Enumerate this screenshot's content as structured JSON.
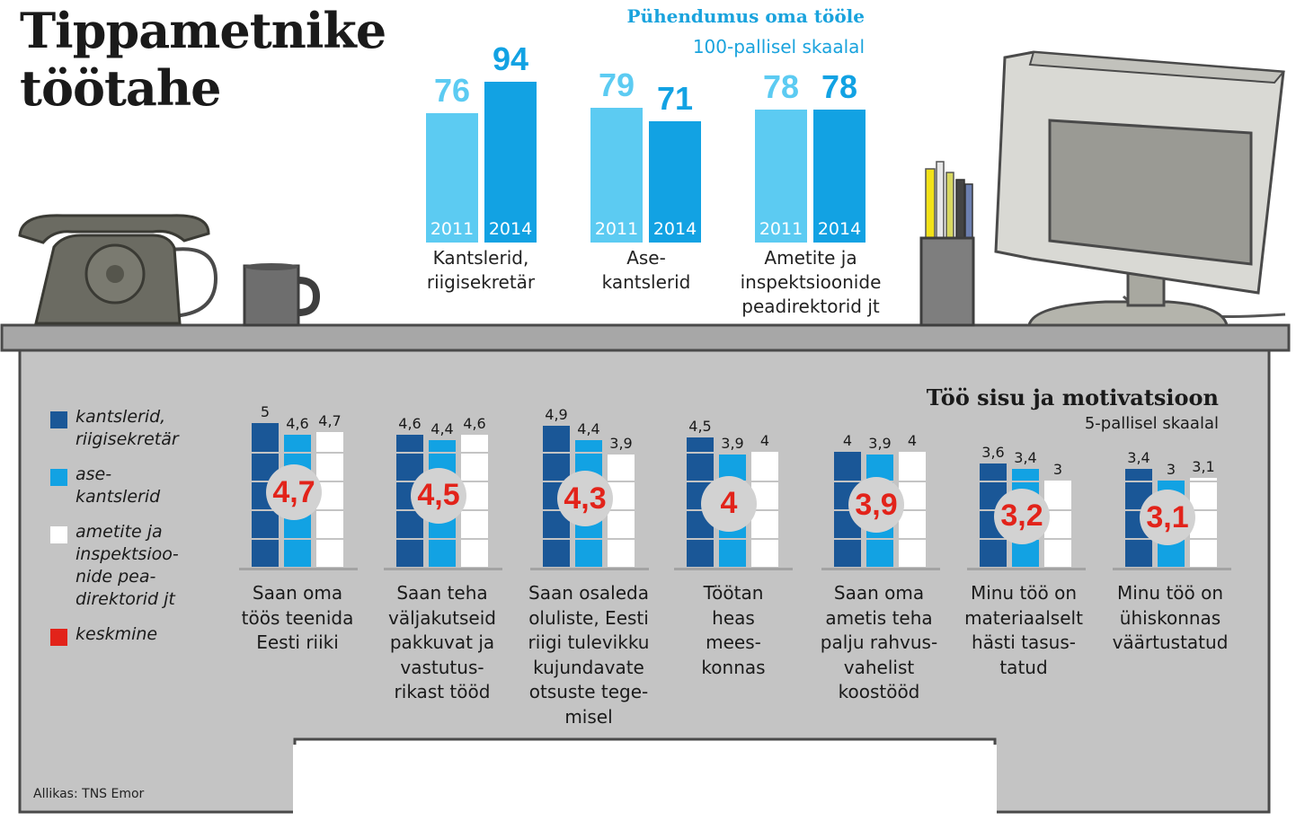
{
  "title": [
    "Tippametnike",
    "töötahe"
  ],
  "top_chart": {
    "title": "Pühendumus oma tööle",
    "subtitle": "100-pallisel skaalal"
  },
  "bottom_chart": {
    "title": "Töö sisu ja motivatsioon",
    "subtitle": "5-pallisel skaalal"
  },
  "legend": [
    {
      "label": "kantslerid,\nriigisekretär",
      "color": "#1a5797"
    },
    {
      "label": "ase-\nkantslerid",
      "color": "#12a2e3"
    },
    {
      "label": "ametite ja\ninspektsioo-\nnide pea-\ndirektorid jt",
      "color": "#ffffff"
    },
    {
      "label": "keskmine",
      "color": "#e2231a"
    }
  ],
  "source": "Allikas: TNS Emor",
  "colors": {
    "dark_blue": "#1a5797",
    "blue": "#12a2e3",
    "light_blue": "#5ccbf2",
    "red": "#e2231a",
    "desk_gray": "#c4c4c4"
  },
  "chart_data": [
    {
      "type": "bar",
      "title": "Pühendumus oma tööle",
      "subtitle": "100-pallisel skaalal",
      "categories": [
        "Kantslerid,\nriigisekretär",
        "Ase-\nkantslerid",
        "Ametite ja\ninspektsioonide\npeadirektorid jt"
      ],
      "series": [
        {
          "name": "2011",
          "values": [
            76,
            79,
            78
          ]
        },
        {
          "name": "2014",
          "values": [
            94,
            71,
            78
          ]
        }
      ],
      "ylim": [
        0,
        100
      ]
    },
    {
      "type": "bar",
      "title": "Töö sisu ja motivatsioon",
      "subtitle": "5-pallisel skaalal",
      "categories": [
        "Saan oma\ntöös teenida\nEesti riiki",
        "Saan teha\nväljakutseid\npakkuvat ja\nvastutus-\nrikast tööd",
        "Saan osaleda\noluliste, Eesti\nriigi tulevikku\nkujundavate\notsuste tege-\nmisel",
        "Töötan\nheas\nmees-\nkonnas",
        "Saan oma\nametis teha\npalju rahvus-\nvahelist\nkoostööd",
        "Minu töö on\nmateriaalselt\nhästi tasus-\ntatud",
        "Minu töö on\nühiskonnas\nväärtustatud"
      ],
      "series": [
        {
          "name": "kantslerid, riigisekretär",
          "values": [
            5,
            4.6,
            4.9,
            4.5,
            4,
            3.6,
            3.4
          ]
        },
        {
          "name": "asekantslerid",
          "values": [
            4.6,
            4.4,
            4.4,
            3.9,
            3.9,
            3.4,
            3
          ]
        },
        {
          "name": "ametite ja inspektsioonide peadirektorid jt",
          "values": [
            4.7,
            4.6,
            3.9,
            4,
            4,
            3,
            3.1
          ]
        },
        {
          "name": "keskmine",
          "values": [
            4.7,
            4.5,
            4.3,
            4,
            3.9,
            3.2,
            3.1
          ]
        }
      ],
      "labels": {
        "values": [
          [
            "5",
            "4,6",
            "4,7"
          ],
          [
            "4,6",
            "4,4",
            "4,6"
          ],
          [
            "4,9",
            "4,4",
            "3,9"
          ],
          [
            "4,5",
            "3,9",
            "4"
          ],
          [
            "4",
            "3,9",
            "4"
          ],
          [
            "3,6",
            "3,4",
            "3"
          ],
          [
            "3,4",
            "3",
            "3,1"
          ]
        ],
        "averages": [
          "4,7",
          "4,5",
          "4,3",
          "4",
          "3,9",
          "3,2",
          "3,1"
        ]
      },
      "ylim": [
        0,
        5
      ]
    }
  ]
}
